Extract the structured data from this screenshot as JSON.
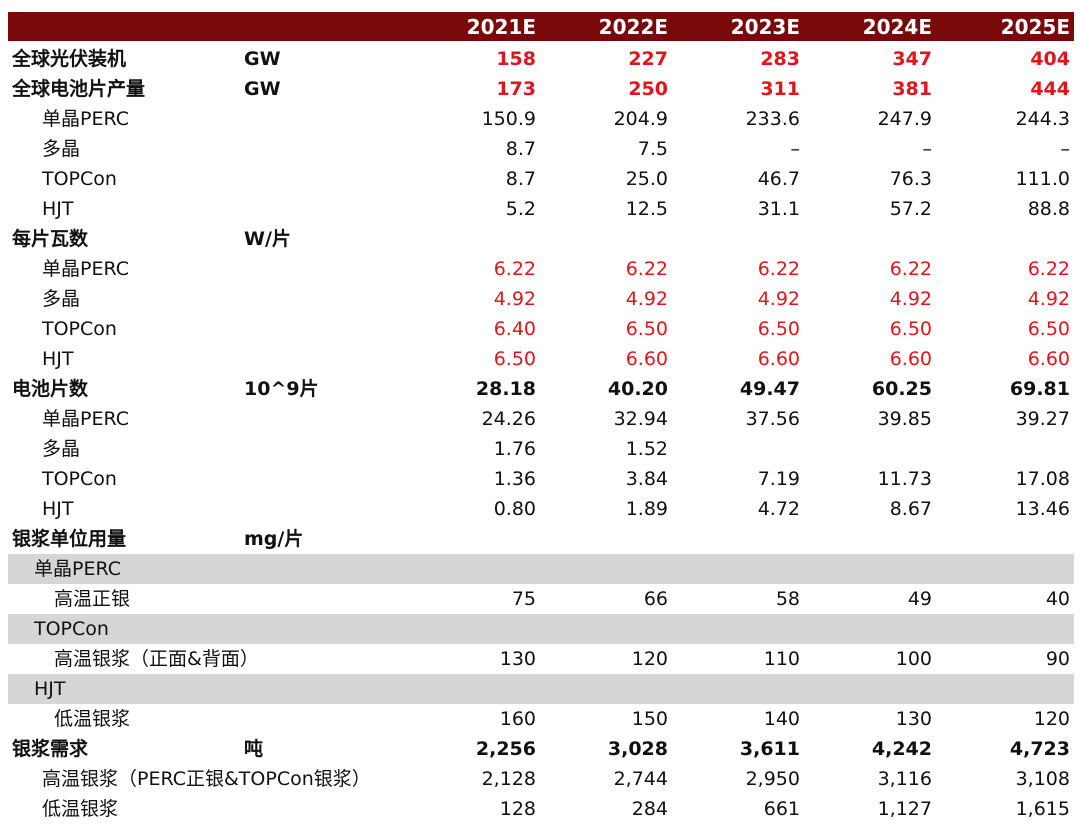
{
  "columns": [
    "2021E",
    "2022E",
    "2023E",
    "2024E",
    "2025E"
  ],
  "rows": [
    {
      "label": "全球光伏装机",
      "unit": "GW",
      "values": [
        "158",
        "227",
        "283",
        "347",
        "404"
      ],
      "style": "bold-red"
    },
    {
      "label": "全球电池片产量",
      "unit": "GW",
      "values": [
        "173",
        "250",
        "311",
        "381",
        "444"
      ],
      "style": "bold-red"
    },
    {
      "label": "单晶PERC",
      "unit": "",
      "values": [
        "150.9",
        "204.9",
        "233.6",
        "247.9",
        "244.3"
      ],
      "style": "sub"
    },
    {
      "label": "多晶",
      "unit": "",
      "values": [
        "8.7",
        "7.5",
        "–",
        "–",
        "–"
      ],
      "style": "sub"
    },
    {
      "label": "TOPCon",
      "unit": "",
      "values": [
        "8.7",
        "25.0",
        "46.7",
        "76.3",
        "111.0"
      ],
      "style": "sub"
    },
    {
      "label": "HJT",
      "unit": "",
      "values": [
        "5.2",
        "12.5",
        "31.1",
        "57.2",
        "88.8"
      ],
      "style": "sub"
    },
    {
      "label": "每片瓦数",
      "unit": "W/片",
      "values": [
        "",
        "",
        "",
        "",
        ""
      ],
      "style": "bold"
    },
    {
      "label": "单晶PERC",
      "unit": "",
      "values": [
        "6.22",
        "6.22",
        "6.22",
        "6.22",
        "6.22"
      ],
      "style": "sub-red"
    },
    {
      "label": "多晶",
      "unit": "",
      "values": [
        "4.92",
        "4.92",
        "4.92",
        "4.92",
        "4.92"
      ],
      "style": "sub-red"
    },
    {
      "label": "TOPCon",
      "unit": "",
      "values": [
        "6.40",
        "6.50",
        "6.50",
        "6.50",
        "6.50"
      ],
      "style": "sub-red"
    },
    {
      "label": "HJT",
      "unit": "",
      "values": [
        "6.50",
        "6.60",
        "6.60",
        "6.60",
        "6.60"
      ],
      "style": "sub-red"
    },
    {
      "label": "电池片数",
      "unit": "10^9片",
      "values": [
        "28.18",
        "40.20",
        "49.47",
        "60.25",
        "69.81"
      ],
      "style": "bold"
    },
    {
      "label": "单晶PERC",
      "unit": "",
      "values": [
        "24.26",
        "32.94",
        "37.56",
        "39.85",
        "39.27"
      ],
      "style": "sub"
    },
    {
      "label": "多晶",
      "unit": "",
      "values": [
        "1.76",
        "1.52",
        "",
        "",
        ""
      ],
      "style": "sub"
    },
    {
      "label": "TOPCon",
      "unit": "",
      "values": [
        "1.36",
        "3.84",
        "7.19",
        "11.73",
        "17.08"
      ],
      "style": "sub"
    },
    {
      "label": "HJT",
      "unit": "",
      "values": [
        "0.80",
        "1.89",
        "4.72",
        "8.67",
        "13.46"
      ],
      "style": "sub"
    },
    {
      "label": "银浆单位用量",
      "unit": "mg/片",
      "values": [
        "",
        "",
        "",
        "",
        ""
      ],
      "style": "bold"
    },
    {
      "label": "单晶PERC",
      "unit": "",
      "values": [
        "",
        "",
        "",
        "",
        ""
      ],
      "style": "group"
    },
    {
      "label": "高温正银",
      "unit": "",
      "values": [
        "75",
        "66",
        "58",
        "49",
        "40"
      ],
      "style": "sub2"
    },
    {
      "label": "TOPCon",
      "unit": "",
      "values": [
        "",
        "",
        "",
        "",
        ""
      ],
      "style": "group"
    },
    {
      "label": "高温银浆（正面&背面）",
      "unit": "",
      "values": [
        "130",
        "120",
        "110",
        "100",
        "90"
      ],
      "style": "sub2"
    },
    {
      "label": "HJT",
      "unit": "",
      "values": [
        "",
        "",
        "",
        "",
        ""
      ],
      "style": "group"
    },
    {
      "label": "低温银浆",
      "unit": "",
      "values": [
        "160",
        "150",
        "140",
        "130",
        "120"
      ],
      "style": "sub2"
    },
    {
      "label": "银浆需求",
      "unit": "吨",
      "values": [
        "2,256",
        "3,028",
        "3,611",
        "4,242",
        "4,723"
      ],
      "style": "bold"
    },
    {
      "label": "高温银浆（PERC正银&TOPCon银浆）",
      "unit": "",
      "values": [
        "2,128",
        "2,744",
        "2,950",
        "3,116",
        "3,108"
      ],
      "style": "sub"
    },
    {
      "label": "低温银浆",
      "unit": "",
      "values": [
        "128",
        "284",
        "661",
        "1,127",
        "1,615"
      ],
      "style": "sub"
    }
  ],
  "colors": {
    "header_bg": "#7a0a0a",
    "header_text": "#ffffff",
    "highlight_text": "#e0161c",
    "group_bg": "#d6d6d6"
  }
}
